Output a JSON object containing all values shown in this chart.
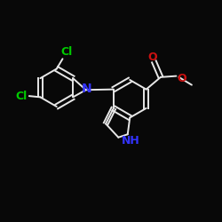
{
  "background_color": "#080808",
  "bond_color": "#e8e8e8",
  "bond_lw": 1.4,
  "label_color_cl": "#00cc00",
  "label_color_n": "#3333ff",
  "label_color_o": "#cc1111",
  "figsize": [
    2.5,
    2.5
  ],
  "dpi": 100,
  "xlim": [
    0,
    10
  ],
  "ylim": [
    1,
    9.5
  ]
}
